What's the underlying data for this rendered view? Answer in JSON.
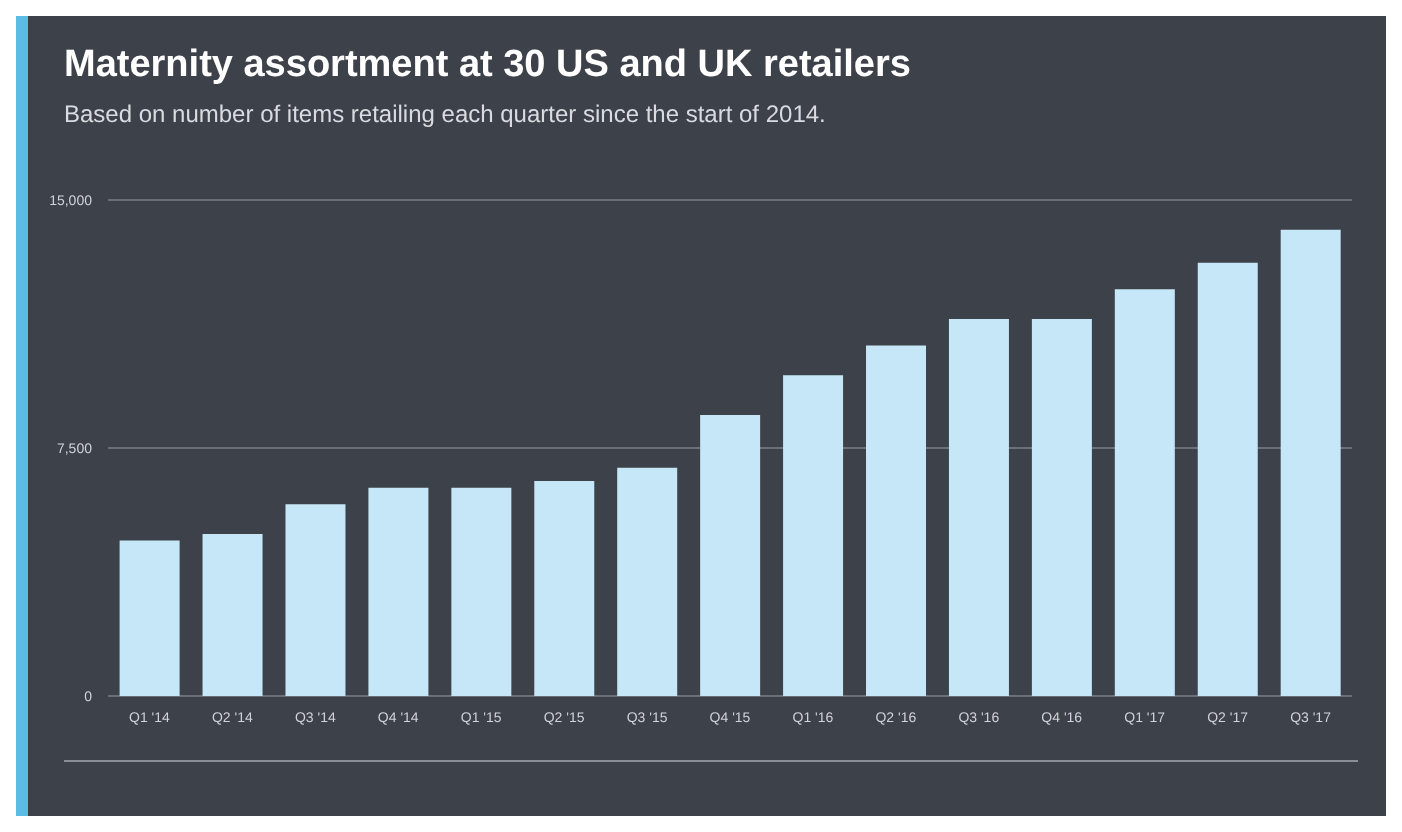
{
  "chart_data": {
    "type": "bar",
    "title": "Maternity assortment at 30 US and UK retailers",
    "subtitle": "Based on number of items retailing each quarter since the start of 2014.",
    "categories": [
      "Q1 '14",
      "Q2 '14",
      "Q3 '14",
      "Q4 '14",
      "Q1 '15",
      "Q2 '15",
      "Q3 '15",
      "Q4 '15",
      "Q1 '16",
      "Q2 '16",
      "Q3 '16",
      "Q4 '16",
      "Q1 '17",
      "Q2 '17",
      "Q3 '17"
    ],
    "values": [
      4700,
      4900,
      5800,
      6300,
      6300,
      6500,
      6900,
      8500,
      9700,
      10600,
      11400,
      11400,
      12300,
      13100,
      14100
    ],
    "color": "#c6e7f7",
    "ylim": [
      0,
      15000
    ],
    "yticks": [
      {
        "value": 0,
        "label": "0"
      },
      {
        "value": 7500,
        "label": "7,500"
      },
      {
        "value": 15000,
        "label": "15,000"
      }
    ],
    "grid": "y"
  }
}
